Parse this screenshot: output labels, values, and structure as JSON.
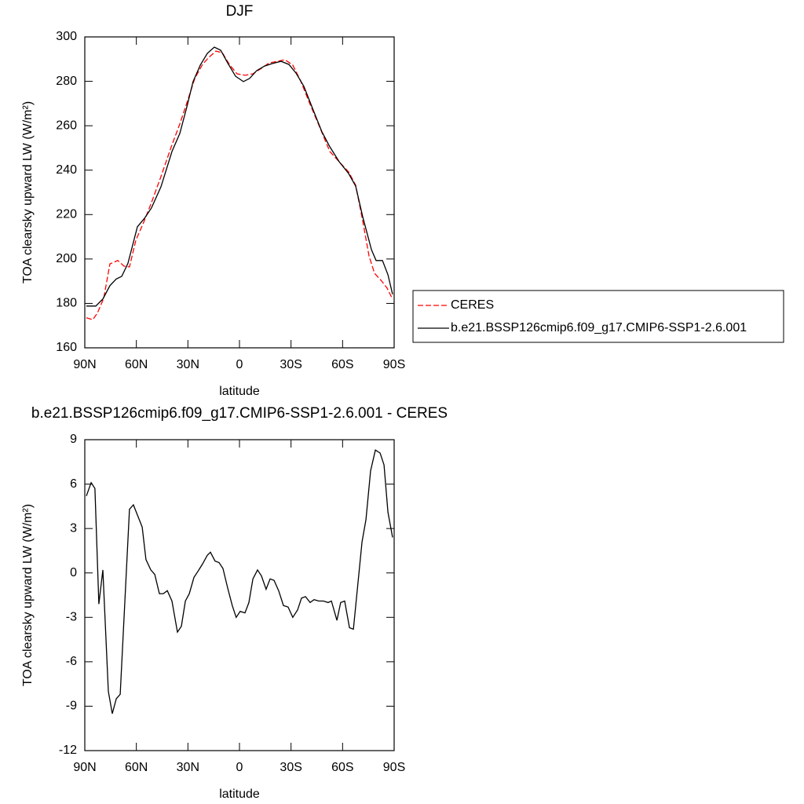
{
  "chart_data": [
    {
      "type": "line",
      "title": "DJF",
      "xlabel": "latitude",
      "ylabel": "TOA clearsky upward LW (W/m²)",
      "xlim": [
        90,
        -90
      ],
      "ylim": [
        160,
        300
      ],
      "xticks": [
        {
          "value": 90,
          "label": "90N"
        },
        {
          "value": 60,
          "label": "60N"
        },
        {
          "value": 30,
          "label": "30N"
        },
        0,
        {
          "value": -30,
          "label": "30S"
        },
        {
          "value": -60,
          "label": "60S"
        },
        {
          "value": -90,
          "label": "90S"
        }
      ],
      "yticks": [
        160,
        180,
        200,
        220,
        240,
        260,
        280,
        300
      ],
      "legend": "outside right",
      "series": [
        {
          "name": "CERES",
          "color": "#ff0000",
          "line_style": "dashed",
          "x": [
            89.1,
            85.4,
            82.7,
            79.0,
            75.4,
            70.8,
            67.2,
            64.0,
            60.3,
            55.7,
            51.2,
            45.7,
            39.7,
            34.7,
            30.6,
            26.0,
            21.5,
            17.8,
            13.7,
            10.0,
            5.9,
            1.4,
            -3.2,
            -7.8,
            -12.8,
            -17.3,
            -21.9,
            -26.5,
            -31.0,
            -35.6,
            -41.1,
            -47.1,
            -52.6,
            -58.5,
            -63.5,
            -67.6,
            -71.7,
            -75.4,
            -78.6,
            -82.7,
            -85.9,
            -89.1
          ],
          "values": [
            173.5,
            172.7,
            175.6,
            182.3,
            197.8,
            199.3,
            196.8,
            196.4,
            208.4,
            216.6,
            225.4,
            237.1,
            250.5,
            260.8,
            270.3,
            281.3,
            287.6,
            290.8,
            293.6,
            292.9,
            287.6,
            283.4,
            282.7,
            283.4,
            285.9,
            288.3,
            289.0,
            289.7,
            287.3,
            280.2,
            269.6,
            258.6,
            248.4,
            243.4,
            239.2,
            233.2,
            217.3,
            201.4,
            193.6,
            190.1,
            186.9,
            181.9
          ]
        },
        {
          "name": "b.e21.BSSP126cmip6.f09_g17.CMIP6-SSP1-2.6.001",
          "color": "#000000",
          "line_style": "solid",
          "x": [
            89.1,
            83.6,
            79.5,
            75.4,
            71.7,
            68.5,
            64.9,
            59.4,
            55.3,
            51.2,
            45.7,
            39.3,
            34.7,
            30.6,
            27.0,
            22.8,
            18.7,
            14.6,
            10.9,
            6.9,
            2.3,
            -2.3,
            -5.9,
            -10.0,
            -14.6,
            -19.2,
            -24.2,
            -28.8,
            -32.9,
            -37.5,
            -42.9,
            -48.0,
            -52.6,
            -58.0,
            -63.5,
            -67.6,
            -71.7,
            -76.8,
            -79.5,
            -83.2,
            -86.4,
            -89.1
          ],
          "values": [
            178.8,
            178.8,
            182.0,
            188.0,
            191.0,
            192.2,
            198.0,
            214.5,
            218.3,
            223.0,
            232.5,
            248.4,
            256.5,
            268.5,
            279.9,
            287.3,
            292.6,
            295.4,
            294.0,
            288.3,
            282.3,
            279.9,
            281.3,
            284.8,
            286.9,
            288.0,
            289.0,
            287.6,
            283.7,
            277.7,
            267.1,
            257.2,
            250.5,
            243.8,
            238.5,
            232.8,
            219.1,
            204.2,
            199.3,
            199.3,
            192.9,
            184.1
          ]
        }
      ]
    },
    {
      "type": "line",
      "title": "b.e21.BSSP126cmip6.f09_g17.CMIP6-SSP1-2.6.001 - CERES",
      "xlabel": "latitude",
      "ylabel": "TOA clearsky upward LW (W/m²)",
      "xlim": [
        90,
        -90
      ],
      "ylim": [
        -12,
        9
      ],
      "xticks": [
        {
          "value": 90,
          "label": "90N"
        },
        {
          "value": 60,
          "label": "60N"
        },
        {
          "value": 30,
          "label": "30N"
        },
        0,
        {
          "value": -30,
          "label": "30S"
        },
        {
          "value": -60,
          "label": "60S"
        },
        {
          "value": -90,
          "label": "90S"
        }
      ],
      "yticks": [
        -12,
        -9,
        -6,
        -3,
        0,
        3,
        6,
        9
      ],
      "series": [
        {
          "color": "#000000",
          "line_style": "solid",
          "x": [
            89.1,
            86.3,
            84.1,
            81.8,
            79.5,
            76.3,
            74.0,
            71.7,
            69.4,
            64.0,
            61.7,
            56.6,
            54.4,
            51.6,
            49.3,
            46.6,
            44.3,
            42.0,
            39.3,
            36.1,
            33.8,
            31.5,
            29.2,
            26.5,
            24.2,
            21.5,
            18.7,
            16.9,
            14.2,
            11.9,
            9.6,
            6.9,
            4.2,
            1.9,
            -0.4,
            -3.2,
            -5.5,
            -7.8,
            -10.5,
            -12.8,
            -15.5,
            -17.8,
            -20.1,
            -22.8,
            -25.6,
            -28.3,
            -31.0,
            -33.8,
            -36.1,
            -38.4,
            -41.1,
            -43.4,
            -46.2,
            -48.9,
            -51.6,
            -53.5,
            -56.7,
            -58.9,
            -61.2,
            -64.0,
            -66.3,
            -71.3,
            -73.6,
            -76.3,
            -79.1,
            -81.8,
            -84.1,
            -86.4,
            -89.1
          ],
          "values": [
            5.2,
            6.1,
            5.7,
            -2.1,
            0.2,
            -8.0,
            -9.5,
            -8.5,
            -8.2,
            4.3,
            4.6,
            3.1,
            0.9,
            0.2,
            -0.1,
            -1.4,
            -1.4,
            -1.2,
            -1.9,
            -4.0,
            -3.6,
            -1.9,
            -1.4,
            -0.3,
            0.1,
            0.6,
            1.2,
            1.4,
            0.8,
            0.7,
            0.3,
            -1.0,
            -2.2,
            -3.0,
            -2.6,
            -2.7,
            -2.0,
            -0.4,
            0.2,
            -0.2,
            -1.1,
            -0.4,
            -0.5,
            -1.2,
            -2.2,
            -2.3,
            -3.0,
            -2.5,
            -1.7,
            -1.6,
            -2.0,
            -1.8,
            -1.9,
            -1.9,
            -2.0,
            -1.9,
            -3.2,
            -2.0,
            -1.9,
            -3.7,
            -3.8,
            2.1,
            3.6,
            6.9,
            8.3,
            8.1,
            7.3,
            4.1,
            2.4
          ]
        }
      ]
    }
  ]
}
